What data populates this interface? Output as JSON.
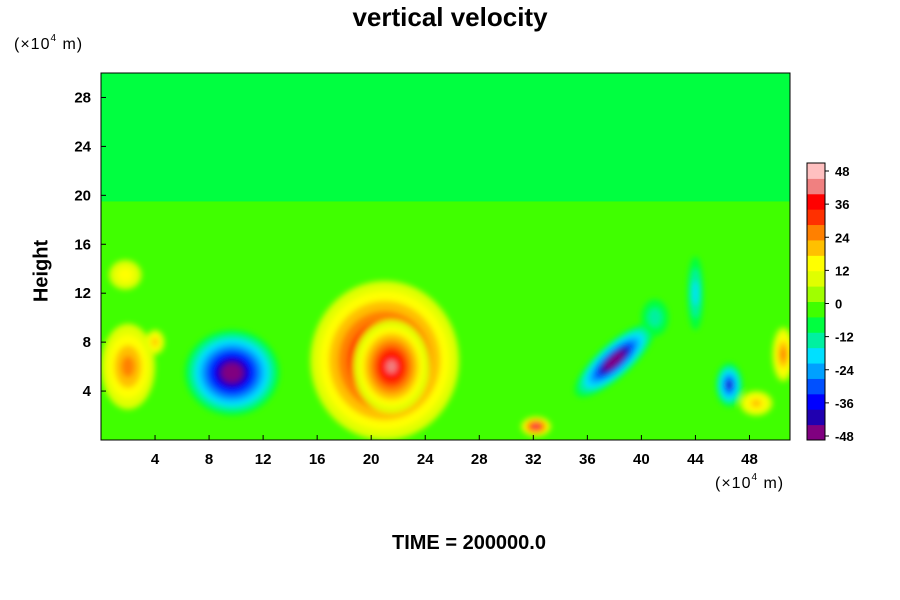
{
  "chart_data": {
    "type": "heatmap",
    "title": "vertical velocity",
    "xlabel": "",
    "ylabel": "Height",
    "x_unit": {
      "prefix": "(×10",
      "exp": "4",
      "suffix": " m)"
    },
    "y_unit": {
      "prefix": "(×10",
      "exp": "4",
      "suffix": " m)"
    },
    "footer": "TIME = 200000.0",
    "xlim": [
      0,
      51
    ],
    "ylim": [
      0,
      30
    ],
    "x_ticks": [
      4,
      8,
      12,
      16,
      20,
      24,
      28,
      32,
      36,
      40,
      44,
      48
    ],
    "y_ticks": [
      4,
      8,
      12,
      16,
      20,
      24,
      28
    ],
    "colorbar": {
      "range": [
        -48,
        48
      ],
      "ticks": [
        -48,
        -36,
        -24,
        -12,
        0,
        12,
        24,
        36,
        48
      ],
      "colors": [
        "#800080",
        "#2000b0",
        "#0000ff",
        "#0050ff",
        "#00a0ff",
        "#00e0ff",
        "#00f0a0",
        "#00ff40",
        "#40ff00",
        "#a0ff00",
        "#e0ff00",
        "#ffff00",
        "#ffc000",
        "#ff8000",
        "#ff3000",
        "#ff0000",
        "#f08080",
        "#ffc0c0"
      ]
    },
    "features": [
      {
        "x": 21,
        "y": 6.5,
        "rx": 5.5,
        "ry": 6.5,
        "value": 50
      },
      {
        "x": 21.5,
        "y": 6,
        "rx": 2.8,
        "ry": 3.8,
        "value": 40
      },
      {
        "x": 9.7,
        "y": 5.5,
        "rx": 3.5,
        "ry": 3.5,
        "value": -52
      },
      {
        "x": 38,
        "y": 6.5,
        "rx": 3.8,
        "ry": 1.4,
        "rot": -42,
        "value": -50
      },
      {
        "x": 2,
        "y": 6,
        "rx": 2,
        "ry": 3.5,
        "value": 24
      },
      {
        "x": 32.2,
        "y": 1.1,
        "rx": 1.1,
        "ry": 0.8,
        "value": 42
      },
      {
        "x": 46.5,
        "y": 4.5,
        "rx": 1.0,
        "ry": 1.8,
        "value": -38
      },
      {
        "x": 48.5,
        "y": 3,
        "rx": 1.2,
        "ry": 1.0,
        "value": 18
      },
      {
        "x": 50.5,
        "y": 7,
        "rx": 0.8,
        "ry": 2.2,
        "value": 24
      },
      {
        "x": 1.8,
        "y": 13.5,
        "rx": 1.2,
        "ry": 1.2,
        "value": 14
      },
      {
        "x": 44,
        "y": 12,
        "rx": 0.6,
        "ry": 3.0,
        "value": -20
      },
      {
        "x": 41,
        "y": 10,
        "rx": 1.0,
        "ry": 1.5,
        "value": -14
      },
      {
        "x": 4,
        "y": 8,
        "rx": 0.7,
        "ry": 1.0,
        "value": 20
      }
    ]
  }
}
